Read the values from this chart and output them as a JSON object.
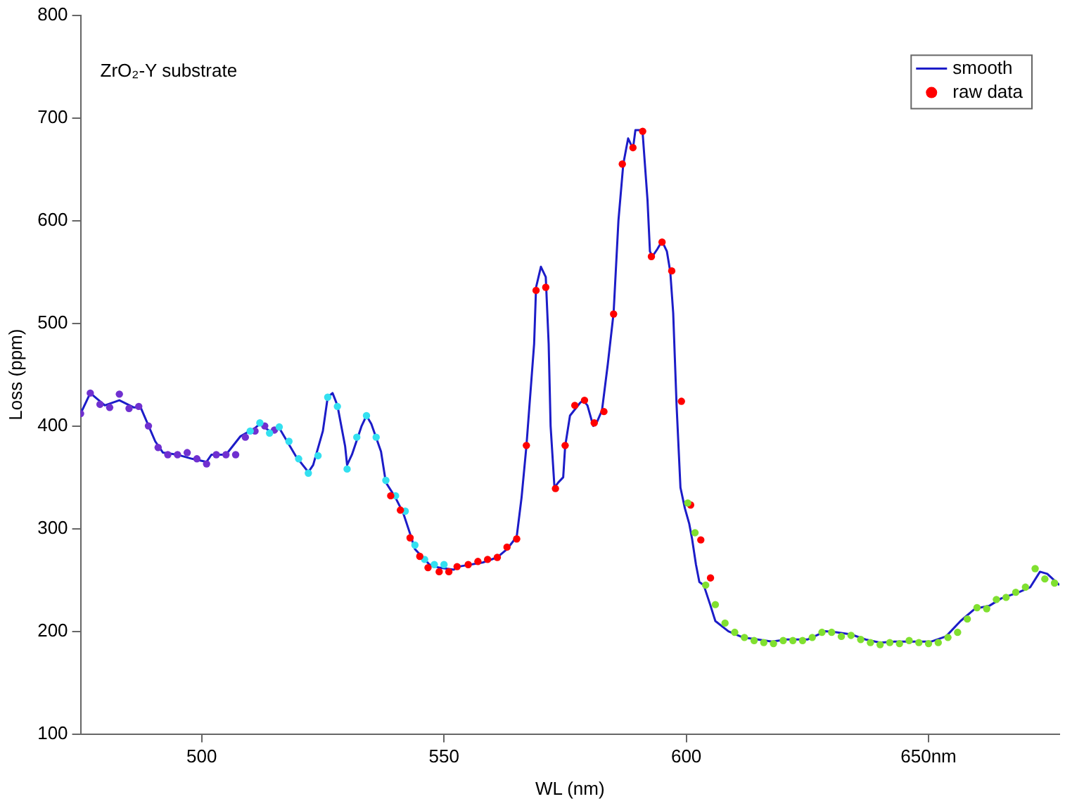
{
  "chart_data": {
    "type": "line",
    "xlabel": "WL (nm)",
    "ylabel": "Loss (ppm)",
    "annotations": [
      "ZrO₂-Y substrate"
    ],
    "xlim": [
      475,
      677
    ],
    "xticks": [
      500,
      550,
      600,
      {
        "value": 650,
        "label": "650nm"
      }
    ],
    "ylim": [
      100,
      800
    ],
    "yticks": [
      100,
      200,
      300,
      400,
      500,
      600,
      700,
      800
    ],
    "grid": false,
    "legend": "top right",
    "line_style": "solid",
    "series": [
      {
        "name": "smooth",
        "type": "line",
        "marker": "none",
        "color": "#1c1cc8",
        "x": [
          475,
          477,
          480,
          483,
          486,
          487.4,
          490.4,
          492,
          495,
          498,
          501,
          502,
          505,
          508,
          511,
          512,
          514,
          516,
          517,
          519.5,
          522,
          523,
          525,
          526,
          527,
          528,
          529.6,
          530,
          531,
          533,
          534,
          535,
          537,
          538,
          540,
          541.6,
          543,
          544,
          546,
          547,
          549,
          552,
          553,
          558,
          561,
          563,
          565,
          566,
          567,
          568.6,
          569,
          570,
          571,
          571.6,
          572,
          572.8,
          573.6,
          574.6,
          575,
          576,
          578,
          578.7,
          579.6,
          580.8,
          581.4,
          582.6,
          583.8,
          585,
          586,
          587,
          588,
          589,
          589.5,
          590.4,
          591,
          592,
          592.5,
          593,
          594,
          595,
          596,
          596.7,
          597.3,
          598,
          598.8,
          599.7,
          600.6,
          601.2,
          602,
          602.7,
          603.6,
          605,
          606,
          608.7,
          611.7,
          614.7,
          617.7,
          620.7,
          625,
          628.7,
          631,
          634,
          637,
          640,
          643,
          647.6,
          650.6,
          653.6,
          656.6,
          659.6,
          662.6,
          665,
          668.6,
          671,
          673,
          674.5,
          677
        ],
        "values": [
          412,
          432,
          420,
          425,
          418,
          418,
          385,
          374,
          372,
          368,
          365,
          372,
          372,
          390,
          398,
          402,
          395,
          398,
          390,
          370,
          355,
          362,
          395,
          428,
          432,
          420,
          380,
          362,
          372,
          400,
          410,
          402,
          375,
          345,
          330,
          315,
          295,
          280,
          270,
          265,
          262,
          260,
          263,
          267,
          272,
          280,
          292,
          330,
          380,
          480,
          535,
          555,
          545,
          480,
          400,
          340,
          345,
          350,
          380,
          410,
          422,
          425,
          420,
          400,
          402,
          415,
          460,
          510,
          600,
          655,
          680,
          670,
          688,
          688,
          685,
          620,
          570,
          565,
          572,
          580,
          570,
          550,
          510,
          420,
          340,
          320,
          305,
          290,
          265,
          248,
          245,
          225,
          210,
          200,
          194,
          192,
          190,
          192,
          192,
          200,
          199,
          197,
          192,
          189,
          190,
          190,
          190,
          195,
          210,
          222,
          225,
          232,
          238,
          243,
          258,
          256,
          245
        ]
      },
      {
        "type": "scatter",
        "color": "#7030d0",
        "x": [
          475,
          477,
          479,
          481,
          483,
          485,
          487,
          489,
          491,
          493,
          495,
          497,
          499,
          501,
          503,
          505,
          507,
          509,
          511,
          513,
          515
        ],
        "values": [
          412,
          432,
          421,
          418,
          431,
          417,
          419,
          400,
          379,
          372,
          372,
          374,
          368,
          363,
          372,
          372,
          372,
          389,
          395,
          400,
          396
        ]
      },
      {
        "type": "scatter",
        "color": "#33e0f0",
        "x": [
          510,
          512,
          514,
          516,
          518,
          520,
          522,
          524,
          526,
          528,
          530,
          532,
          534,
          536,
          538,
          540,
          542,
          544,
          546,
          548,
          550
        ],
        "values": [
          395,
          403,
          393,
          399,
          385,
          368,
          354,
          371,
          428,
          419,
          358,
          389,
          410,
          389,
          347,
          332,
          317,
          284,
          270,
          265,
          265
        ]
      },
      {
        "name": "raw data",
        "type": "scatter",
        "color": "#ff0000",
        "x": [
          539,
          541,
          543,
          545,
          546.7,
          549,
          551,
          552.7,
          555,
          557,
          559,
          561,
          563,
          565,
          567,
          569,
          571,
          573,
          575,
          577,
          579,
          581,
          583,
          585,
          586.8,
          589,
          591,
          592.8,
          595,
          597,
          599,
          600.9,
          603,
          605
        ],
        "values": [
          332,
          318,
          291,
          273,
          262,
          258,
          258,
          263,
          265,
          268,
          270,
          272,
          282,
          290,
          381,
          532,
          535,
          339,
          381,
          420,
          425,
          403,
          414,
          509,
          655,
          671,
          687,
          565,
          579,
          551,
          424,
          323,
          289,
          252
        ]
      },
      {
        "type": "scatter",
        "color": "#80e030",
        "x": [
          600.3,
          601.8,
          604,
          606,
          608,
          610,
          612,
          614,
          616,
          618,
          620,
          622,
          624,
          626,
          628,
          630,
          632,
          634,
          636,
          638,
          640,
          642,
          644,
          646,
          648,
          650,
          652,
          654,
          656,
          658,
          660,
          662,
          664,
          666,
          668,
          670,
          672,
          674,
          676
        ],
        "values": [
          325,
          296,
          245,
          226,
          208,
          199,
          194,
          191,
          189,
          188,
          191,
          191,
          191,
          194,
          199,
          199,
          195,
          196,
          192,
          189,
          187,
          189,
          188,
          191,
          189,
          188,
          189,
          194,
          199,
          212,
          223,
          222,
          231,
          233,
          238,
          243,
          261,
          251,
          247
        ]
      }
    ]
  }
}
